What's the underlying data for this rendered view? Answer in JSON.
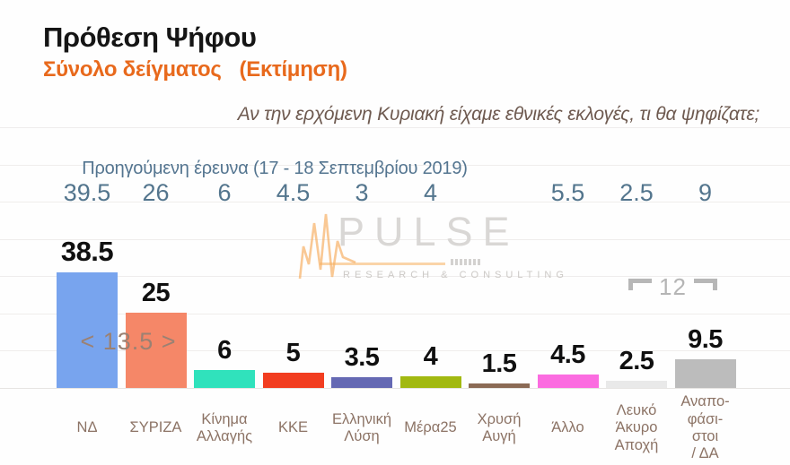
{
  "header": {
    "title": "Πρόθεση Ψήφου",
    "subtitle": "Σύνολο δείγματος",
    "subtitle_note": "(Εκτίμηση)",
    "question": "Αν την ερχόμενη Κυριακή είχαμε εθνικές εκλογές, τι θα ψηφίζατε;"
  },
  "previous_survey": {
    "label": "Προηγούμενη έρευνα (17 - 18 Σεπτεμβρίου  2019)"
  },
  "watermark": {
    "name": "PULSE",
    "tagline": "RESEARCH & CONSULTING"
  },
  "annotations": {
    "lead_gap": "< 13.5 >",
    "bracket_sum": "12"
  },
  "colors": {
    "accent_orange": "#e8691c",
    "prev_text_blue": "#53758d",
    "category_brown": "#8c7365",
    "question_brown": "#6e5a50",
    "annotation_gray_brown": "#9b8173",
    "bracket_gray": "#b7b7b7"
  },
  "category_lines": [
    [
      "ΝΔ"
    ],
    [
      "ΣΥΡΙΖΑ"
    ],
    [
      "Κίνημα",
      "Αλλαγής"
    ],
    [
      "ΚΚΕ"
    ],
    [
      "Ελληνική",
      "Λύση"
    ],
    [
      "Μέρα25"
    ],
    [
      "Χρυσή",
      "Αυγή"
    ],
    [
      "Άλλο"
    ],
    [
      "Λευκό",
      "Άκυρο",
      "Αποχή"
    ],
    [
      "Αναπο-",
      "φάσι-",
      "στοι",
      "/ ΔΑ"
    ]
  ],
  "chart_data": {
    "type": "bar",
    "title": "Πρόθεση Ψήφου",
    "subtitle": "Σύνολο δείγματος (Εκτίμηση)",
    "question": "Αν την ερχόμενη Κυριακή είχαμε εθνικές εκλογές, τι θα ψηφίζατε;",
    "categories": [
      "ΝΔ",
      "ΣΥΡΙΖΑ",
      "Κίνημα Αλλαγής",
      "ΚΚΕ",
      "Ελληνική Λύση",
      "Μέρα25",
      "Χρυσή Αυγή",
      "Άλλο",
      "Λευκό Άκυρο Αποχή",
      "Αναποφάσιστοι / ΔΑ"
    ],
    "series": [
      {
        "name": "Εκτίμηση",
        "values": [
          38.5,
          25,
          6,
          5,
          3.5,
          4,
          1.5,
          4.5,
          2.5,
          9.5
        ]
      },
      {
        "name": "Προηγούμενη έρευνα (17 - 18 Σεπτεμβρίου 2019)",
        "values": [
          39.5,
          26,
          6,
          4.5,
          3,
          4,
          null,
          5.5,
          2.5,
          9
        ]
      }
    ],
    "bar_colors": [
      "#78a4ee",
      "#f58768",
      "#30e2bc",
      "#f23d20",
      "#6569b3",
      "#a2b911",
      "#8b6a55",
      "#fb6ce0",
      "#e9e9e9",
      "#bcbcbc"
    ],
    "annotations": [
      {
        "text": "< 13.5 >",
        "between": [
          "ΝΔ",
          "ΣΥΡΙΖΑ"
        ]
      },
      {
        "text": "12",
        "style": "bracket",
        "over": [
          "Λευκό Άκυρο Αποχή",
          "Αναποφάσιστοι / ΔΑ"
        ]
      }
    ],
    "ylim": [
      0,
      42
    ],
    "grid": "faint-horizontal-lines",
    "legend": "none"
  }
}
